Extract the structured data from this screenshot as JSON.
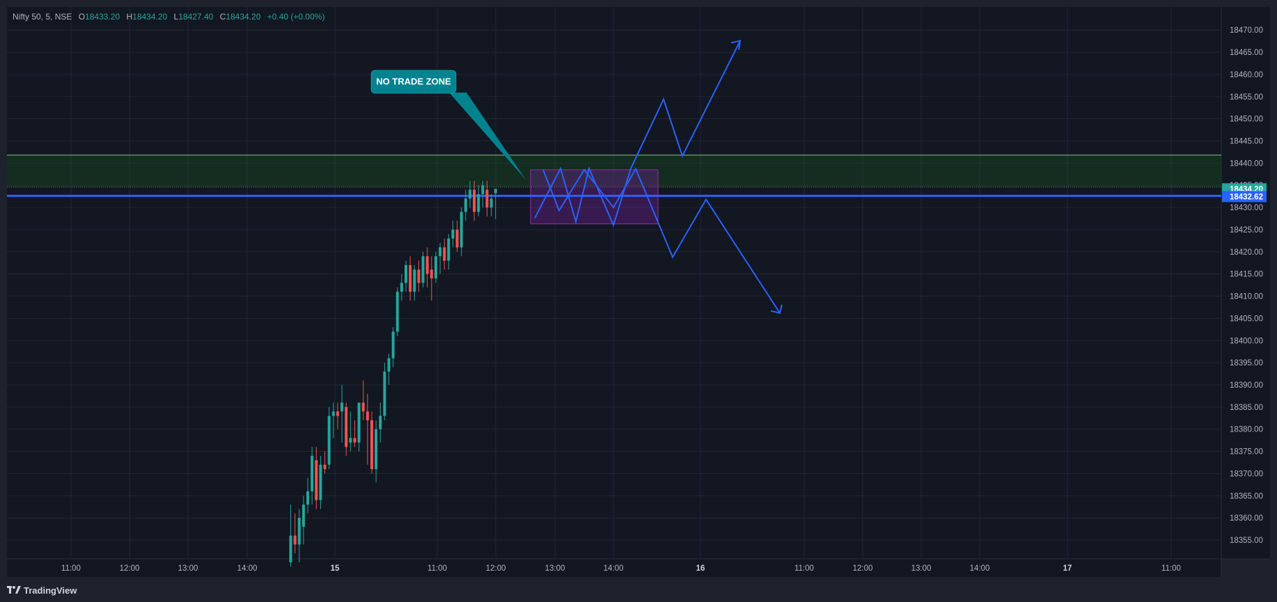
{
  "legend": {
    "symbol": "Nifty 50, 5, NSE",
    "open_key": "O",
    "open": "18433.20",
    "high_key": "H",
    "high": "18434.20",
    "low_key": "L",
    "low": "18427.40",
    "close_key": "C",
    "close": "18434.20",
    "change": "+0.40 (+0.00%)"
  },
  "footer": {
    "brand": "TradingView",
    "icon": "tradingview-logo-icon"
  },
  "colors": {
    "background": "#131722",
    "frame": "#1e222d",
    "grid": "#232735",
    "up": "#26a69a",
    "down": "#ef5350",
    "zone_fill": "#1b5e20",
    "zone_border": "#81c784",
    "box_fill": "#7b1fa2",
    "projection": "#2962ff",
    "callout": "#00838f",
    "last_price": "#26a69a",
    "hline": "#2962ff"
  },
  "chart_data": {
    "type": "candlestick",
    "title": "Nifty 50, 5, NSE",
    "ylim": [
      18350,
      18474
    ],
    "y_ticks": [
      18355,
      18360,
      18365,
      18370,
      18375,
      18380,
      18385,
      18390,
      18395,
      18400,
      18405,
      18410,
      18415,
      18420,
      18425,
      18430,
      18435,
      18440,
      18445,
      18450,
      18455,
      18460,
      18465,
      18470
    ],
    "y_tick_labels": [
      "18355.00",
      "18360.00",
      "18365.00",
      "18370.00",
      "18375.00",
      "18380.00",
      "18385.00",
      "18390.00",
      "18395.00",
      "18400.00",
      "18405.00",
      "18410.00",
      "18415.00",
      "18420.00",
      "18425.00",
      "18430.00",
      "18435.00",
      "18440.00",
      "18445.00",
      "18450.00",
      "18455.00",
      "18460.00",
      "18465.00",
      "18470.00"
    ],
    "x_ticks": [
      {
        "label": "11:00"
      },
      {
        "label": "12:00"
      },
      {
        "label": "13:00"
      },
      {
        "label": "14:00"
      },
      {
        "label": "15"
      },
      {
        "label": "11:00"
      },
      {
        "label": "12:00"
      },
      {
        "label": "13:00"
      },
      {
        "label": "14:00"
      },
      {
        "label": "16"
      },
      {
        "label": "11:00"
      },
      {
        "label": "12:00"
      },
      {
        "label": "13:00"
      },
      {
        "label": "14:00"
      },
      {
        "label": "17"
      },
      {
        "label": "11:00"
      }
    ],
    "candles": [
      {
        "o": 18350,
        "h": 18363,
        "l": 18349,
        "c": 18356
      },
      {
        "o": 18356,
        "h": 18361,
        "l": 18352,
        "c": 18354
      },
      {
        "o": 18354,
        "h": 18362,
        "l": 18350,
        "c": 18360
      },
      {
        "o": 18358,
        "h": 18365,
        "l": 18354,
        "c": 18363
      },
      {
        "o": 18363,
        "h": 18369,
        "l": 18361,
        "c": 18366
      },
      {
        "o": 18366,
        "h": 18376,
        "l": 18363,
        "c": 18374
      },
      {
        "o": 18373,
        "h": 18376,
        "l": 18362,
        "c": 18364
      },
      {
        "o": 18364,
        "h": 18374,
        "l": 18362,
        "c": 18372
      },
      {
        "o": 18372,
        "h": 18375,
        "l": 18370,
        "c": 18371
      },
      {
        "o": 18372,
        "h": 18385,
        "l": 18371,
        "c": 18383
      },
      {
        "o": 18383,
        "h": 18386,
        "l": 18378,
        "c": 18384
      },
      {
        "o": 18384,
        "h": 18386,
        "l": 18380,
        "c": 18383
      },
      {
        "o": 18384,
        "h": 18390,
        "l": 18377,
        "c": 18386
      },
      {
        "o": 18385,
        "h": 18386,
        "l": 18374,
        "c": 18376
      },
      {
        "o": 18377,
        "h": 18384,
        "l": 18375,
        "c": 18378
      },
      {
        "o": 18378,
        "h": 18382,
        "l": 18376,
        "c": 18377
      },
      {
        "o": 18377,
        "h": 18386,
        "l": 18375,
        "c": 18386
      },
      {
        "o": 18386,
        "h": 18391,
        "l": 18382,
        "c": 18384
      },
      {
        "o": 18384,
        "h": 18388,
        "l": 18372,
        "c": 18382
      },
      {
        "o": 18382,
        "h": 18384,
        "l": 18370,
        "c": 18371
      },
      {
        "o": 18371,
        "h": 18382,
        "l": 18368,
        "c": 18380
      },
      {
        "o": 18380,
        "h": 18386,
        "l": 18377,
        "c": 18383
      },
      {
        "o": 18383,
        "h": 18395,
        "l": 18382,
        "c": 18393
      },
      {
        "o": 18393,
        "h": 18397,
        "l": 18390,
        "c": 18396
      },
      {
        "o": 18396,
        "h": 18403,
        "l": 18394,
        "c": 18402
      },
      {
        "o": 18402,
        "h": 18412,
        "l": 18401,
        "c": 18411
      },
      {
        "o": 18411,
        "h": 18415,
        "l": 18409,
        "c": 18413
      },
      {
        "o": 18413,
        "h": 18418,
        "l": 18411,
        "c": 18417
      },
      {
        "o": 18417,
        "h": 18419,
        "l": 18409,
        "c": 18411
      },
      {
        "o": 18411,
        "h": 18417,
        "l": 18409,
        "c": 18416
      },
      {
        "o": 18416,
        "h": 18418,
        "l": 18411,
        "c": 18413
      },
      {
        "o": 18413,
        "h": 18420,
        "l": 18412,
        "c": 18419
      },
      {
        "o": 18419,
        "h": 18421,
        "l": 18412,
        "c": 18415
      },
      {
        "o": 18416,
        "h": 18419,
        "l": 18409,
        "c": 18414
      },
      {
        "o": 18414,
        "h": 18420,
        "l": 18413,
        "c": 18419
      },
      {
        "o": 18419,
        "h": 18422,
        "l": 18415,
        "c": 18421
      },
      {
        "o": 18421,
        "h": 18423,
        "l": 18416,
        "c": 18418
      },
      {
        "o": 18418,
        "h": 18424,
        "l": 18416,
        "c": 18423
      },
      {
        "o": 18423,
        "h": 18427,
        "l": 18421,
        "c": 18425
      },
      {
        "o": 18425,
        "h": 18427,
        "l": 18420,
        "c": 18421
      },
      {
        "o": 18421,
        "h": 18430,
        "l": 18419,
        "c": 18429
      },
      {
        "o": 18429,
        "h": 18434,
        "l": 18427,
        "c": 18432
      },
      {
        "o": 18432,
        "h": 18436,
        "l": 18430,
        "c": 18434
      },
      {
        "o": 18434,
        "h": 18436,
        "l": 18427,
        "c": 18429
      },
      {
        "o": 18429,
        "h": 18435,
        "l": 18428,
        "c": 18433
      },
      {
        "o": 18433,
        "h": 18436,
        "l": 18430,
        "c": 18435
      },
      {
        "o": 18434,
        "h": 18436,
        "l": 18428,
        "c": 18430
      },
      {
        "o": 18430,
        "h": 18433,
        "l": 18428,
        "c": 18432
      },
      {
        "o": 18433.2,
        "h": 18434.2,
        "l": 18427.4,
        "c": 18434.2
      }
    ],
    "annotations": {
      "no_trade_zone": {
        "text": "NO TRADE ZONE"
      },
      "resistance_zone": {
        "top": 18441.8,
        "bottom": 18434.6
      },
      "consolidation_box": {
        "top": 18438.5,
        "bottom": 18426.3
      },
      "last_price": {
        "value": "18434.20"
      },
      "horizontal_line": {
        "value": "18432.62"
      },
      "bullish_projection": {
        "prices": [
          18427.6,
          18438.8,
          18426.8,
          18438.8,
          18426.0,
          18438.8,
          18454.4,
          18441.6,
          18467.6
        ]
      },
      "bearish_projection": {
        "prices": [
          18438.5,
          18429.3,
          18438.5,
          18430.0,
          18438.7,
          18418.8,
          18431.8,
          18406.2
        ]
      }
    }
  }
}
